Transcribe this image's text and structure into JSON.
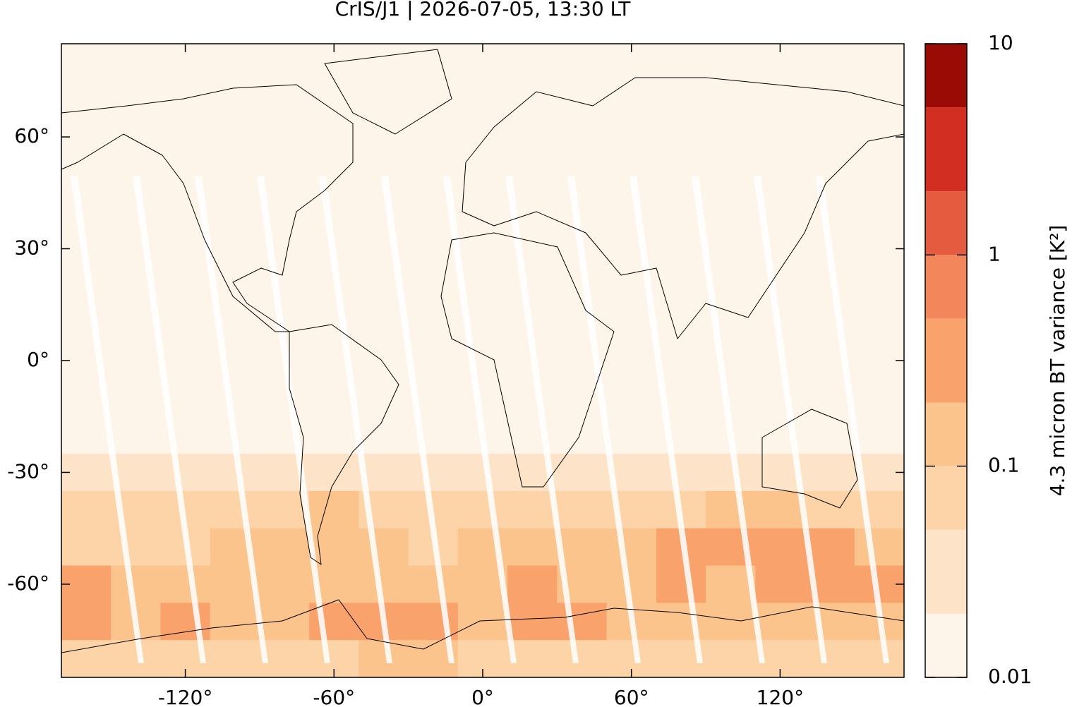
{
  "chart_data": {
    "type": "map",
    "title": "CrIS/J1 | 2026-07-05, 13:30 LT",
    "xlim": [
      -170,
      170
    ],
    "ylim": [
      -85,
      85
    ],
    "xticks": [
      {
        "value": -120,
        "label": "-120°"
      },
      {
        "value": -60,
        "label": "-60°"
      },
      {
        "value": 0,
        "label": "0°"
      },
      {
        "value": 60,
        "label": "60°"
      },
      {
        "value": 120,
        "label": "120°"
      }
    ],
    "yticks": [
      {
        "value": 60,
        "label": "60°"
      },
      {
        "value": 30,
        "label": "30°"
      },
      {
        "value": 0,
        "label": "0°"
      },
      {
        "value": -30,
        "label": "-30°"
      },
      {
        "value": -60,
        "label": "-60°"
      }
    ],
    "field": {
      "lon_edges": [
        -170,
        -150,
        -130,
        -110,
        -90,
        -70,
        -50,
        -30,
        -10,
        10,
        30,
        50,
        70,
        90,
        110,
        130,
        150,
        170
      ],
      "lat_edges": [
        -25,
        -35,
        -45,
        -55,
        -65,
        -75,
        -85
      ],
      "values": [
        [
          0.03,
          0.04,
          0.03,
          0.03,
          0.03,
          0.04,
          0.03,
          0.03,
          0.04,
          0.04,
          0.03,
          0.03,
          0.03,
          0.03,
          0.03,
          0.04,
          0.03
        ],
        [
          0.06,
          0.07,
          0.05,
          0.06,
          0.08,
          0.12,
          0.08,
          0.06,
          0.07,
          0.08,
          0.06,
          0.07,
          0.08,
          0.1,
          0.14,
          0.08,
          0.06
        ],
        [
          0.09,
          0.08,
          0.07,
          0.1,
          0.1,
          0.15,
          0.1,
          0.08,
          0.12,
          0.18,
          0.15,
          0.12,
          0.25,
          0.3,
          0.35,
          0.2,
          0.15
        ],
        [
          0.3,
          0.12,
          0.1,
          0.15,
          0.12,
          0.12,
          0.15,
          0.12,
          0.15,
          0.2,
          0.12,
          0.15,
          0.2,
          0.18,
          0.2,
          0.25,
          0.35
        ],
        [
          0.2,
          0.15,
          0.2,
          0.15,
          0.15,
          0.25,
          0.2,
          0.3,
          0.15,
          0.2,
          0.2,
          0.15,
          0.12,
          0.1,
          0.12,
          0.1,
          0.15
        ],
        [
          0.07,
          0.08,
          0.07,
          0.06,
          0.07,
          0.08,
          0.1,
          0.12,
          0.08,
          0.07,
          0.06,
          0.06,
          0.07,
          0.06,
          0.07,
          0.08,
          0.06
        ]
      ]
    },
    "colorbar": {
      "scale": "log",
      "lim": [
        0.01,
        10
      ],
      "levels": [
        0.01,
        0.02,
        0.05,
        0.1,
        0.2,
        0.5,
        1,
        2,
        5,
        10
      ],
      "colors": [
        "#fef5ea",
        "#fde4c9",
        "#fcd4a8",
        "#fbc48d",
        "#f9a26c",
        "#f3865a",
        "#e55b40",
        "#d22e22",
        "#990b04"
      ],
      "ticks": [
        0.01,
        0.1,
        1,
        10
      ],
      "label": "4.3 micron BT variance [K²]"
    }
  }
}
